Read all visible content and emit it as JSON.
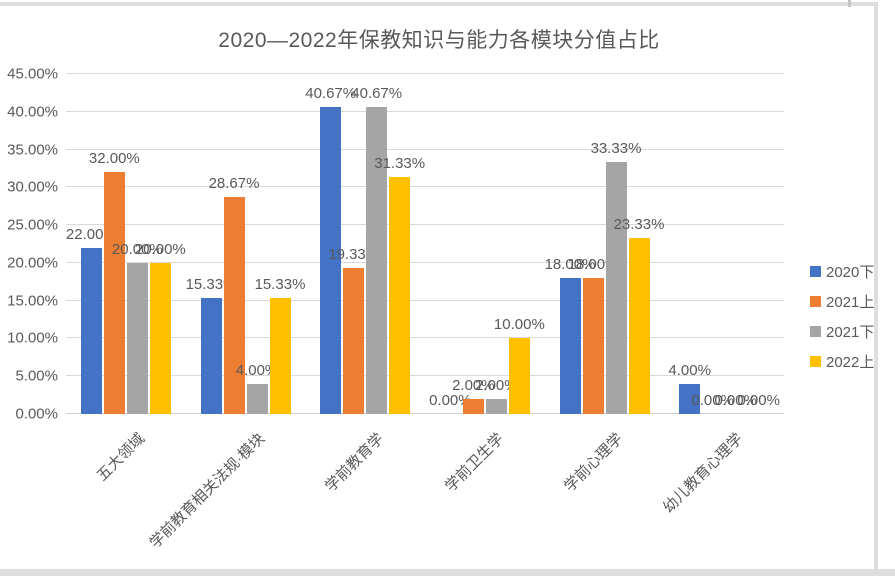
{
  "chart_data": {
    "type": "bar",
    "title": "2020—2022年保教知识与能力各模块分值占比",
    "categories": [
      "五大领域",
      "学前教育相关法规·模块",
      "学前教育学",
      "学前卫生学",
      "学前心理学",
      "幼儿教育心理学"
    ],
    "series": [
      {
        "name": "2020下",
        "color": "#4472C4",
        "values": [
          22.0,
          15.33,
          40.67,
          0.0,
          18.0,
          4.0
        ]
      },
      {
        "name": "2021上",
        "color": "#ED7D31",
        "values": [
          32.0,
          28.67,
          19.33,
          2.0,
          18.0,
          0.0
        ]
      },
      {
        "name": "2021下",
        "color": "#A5A5A5",
        "values": [
          20.0,
          4.0,
          40.67,
          2.0,
          33.33,
          0.0
        ]
      },
      {
        "name": "2022上",
        "color": "#FFC000",
        "values": [
          20.0,
          15.33,
          31.33,
          10.0,
          23.33,
          0.0
        ]
      }
    ],
    "data_labels": [
      [
        "22.00%",
        "15.33%",
        "40.67%",
        "0.00%",
        "18.00%",
        "4.00%"
      ],
      [
        "32.00%",
        "28.67%",
        "19.33%",
        "2.00%",
        "18.00%",
        "0.00%"
      ],
      [
        "20.00%",
        "4.00%",
        "40.67%",
        "2.00%",
        "33.33%",
        "0.00%"
      ],
      [
        "20.00%",
        "15.33%",
        "31.33%",
        "10.00%",
        "23.33%",
        "0.00%"
      ]
    ],
    "ylim": [
      0,
      45
    ],
    "ytick_step": 5,
    "ytick_labels": [
      "0.00%",
      "5.00%",
      "10.00%",
      "15.00%",
      "20.00%",
      "25.00%",
      "30.00%",
      "35.00%",
      "40.00%",
      "45.00%"
    ],
    "grid": true,
    "legend_position": "right",
    "text_color": "#595959",
    "gridline_color": "#D9D9D9"
  }
}
